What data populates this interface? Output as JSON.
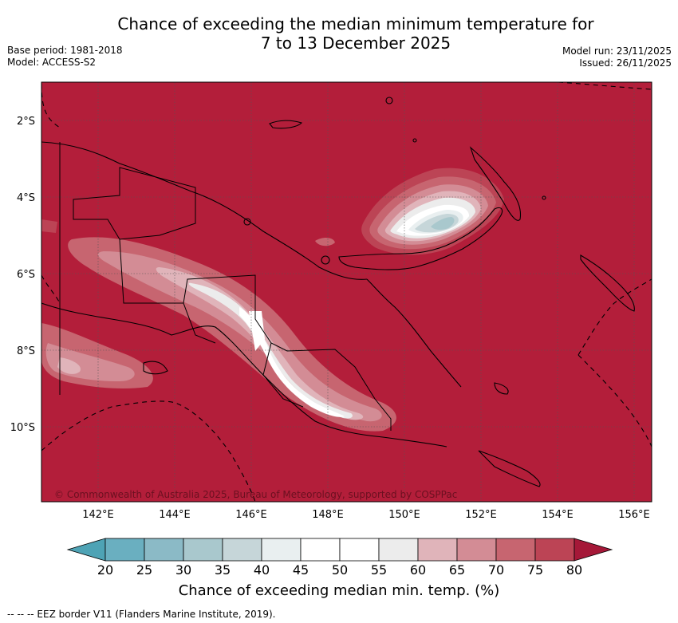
{
  "title_line1": "Chance of exceeding the median minimum temperature for",
  "title_line2": "7 to 13 December 2025",
  "meta_left": {
    "base_period": "Base period: 1981-2018",
    "model": "Model: ACCESS-S2"
  },
  "meta_right": {
    "model_run": "Model run: 23/11/2025",
    "issued": "Issued: 26/11/2025"
  },
  "copyright": "© Commonwealth of Australia 2025, Bureau of Meteorology, supported by COSPPac",
  "map": {
    "lon_range": [
      140.5,
      156.5
    ],
    "lat_range": [
      -12.0,
      -1.0
    ],
    "lon_ticks": [
      "142°E",
      "144°E",
      "146°E",
      "148°E",
      "150°E",
      "152°E",
      "154°E",
      "156°E"
    ],
    "lat_ticks": [
      "2°S",
      "4°S",
      "6°S",
      "8°S",
      "10°S"
    ],
    "background_color": "#b31e3a"
  },
  "colorbar": {
    "levels": [
      "20",
      "25",
      "30",
      "35",
      "40",
      "45",
      "50",
      "55",
      "60",
      "65",
      "70",
      "75",
      "80"
    ],
    "colors": [
      "#4ea3b5",
      "#6aafc0",
      "#8bbac6",
      "#a9c8cd",
      "#c6d6d9",
      "#e9eff0",
      "#ffffff",
      "#ffffff",
      "#ececec",
      "#e0b4ba",
      "#d38c95",
      "#c76570",
      "#bc4455",
      "#a51838"
    ],
    "label": "Chance of exceeding median min. temp. (%)"
  },
  "footer": "--  --  -- EEZ border V11 (Flanders Marine Institute, 2019)."
}
